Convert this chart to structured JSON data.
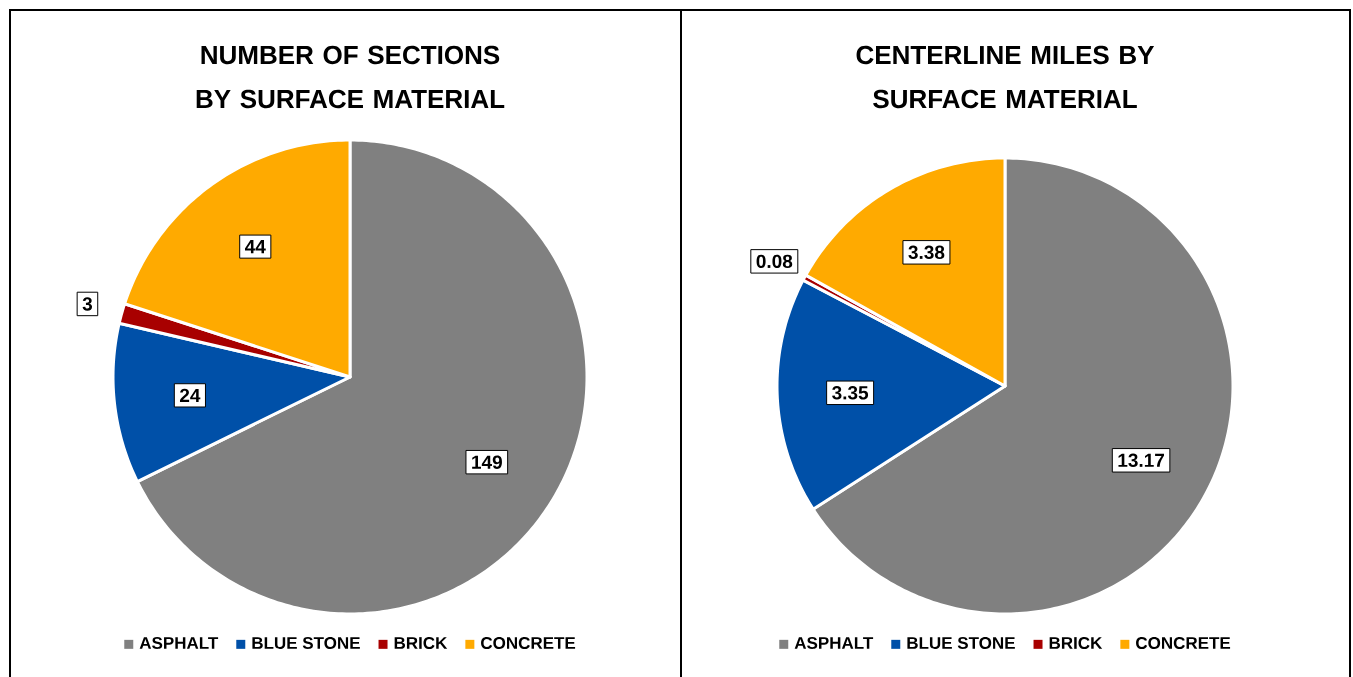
{
  "chart_data": [
    {
      "type": "pie",
      "title": "NUMBER OF SECTIONS BY SURFACE MATERIAL",
      "categories": [
        "ASPHALT",
        "BLUE STONE",
        "BRICK",
        "CONCRETE"
      ],
      "values": [
        149,
        24,
        3,
        44
      ],
      "colors": [
        "#808080",
        "#0050A8",
        "#A80000",
        "#FFAA00"
      ],
      "data_labels": true,
      "legend": "bottom"
    },
    {
      "type": "pie",
      "title": "CENTERLINE MILES BY SURFACE MATERIAL",
      "categories": [
        "ASPHALT",
        "BLUE STONE",
        "BRICK",
        "CONCRETE"
      ],
      "values": [
        13.17,
        3.35,
        0.08,
        3.38
      ],
      "colors": [
        "#808080",
        "#0050A8",
        "#A80000",
        "#FFAA00"
      ],
      "data_labels": true,
      "legend": "bottom"
    }
  ]
}
